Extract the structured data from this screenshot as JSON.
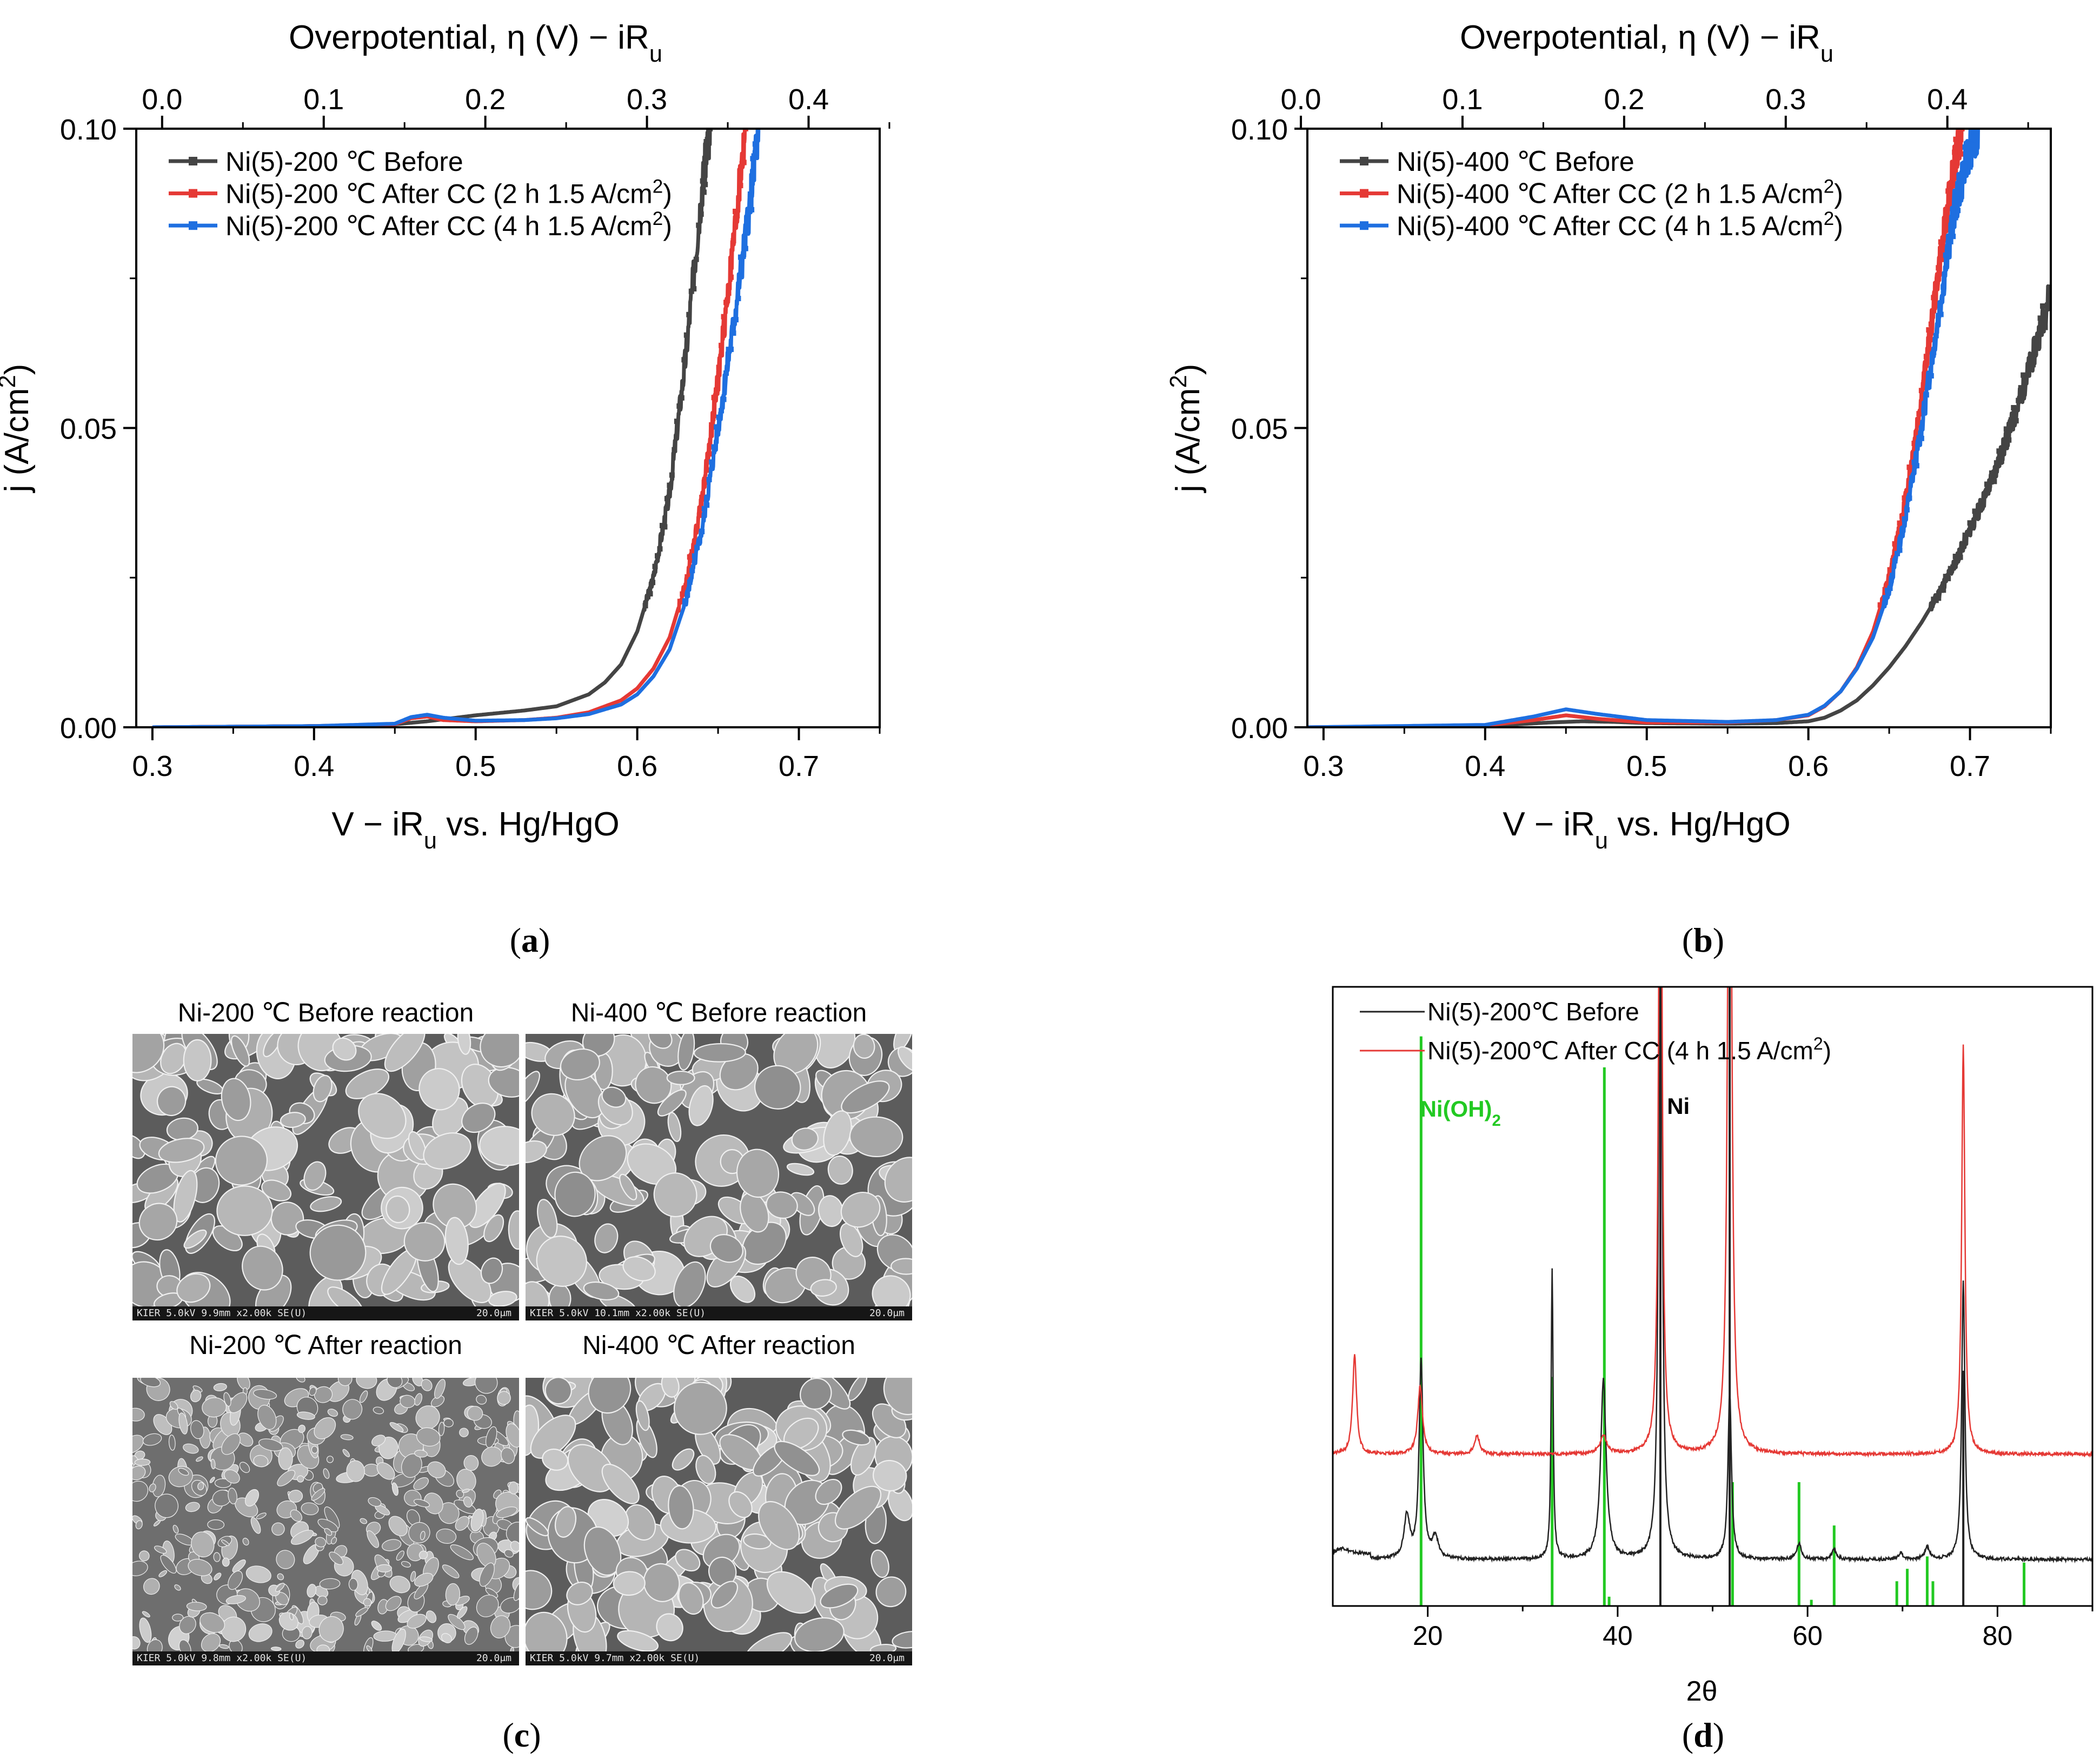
{
  "colors": {
    "before": "#444444",
    "after_2h": "#e53935",
    "after_4h": "#1e6fe0",
    "xrd_before": "#222222",
    "xrd_after": "#e53935",
    "xrd_ref_ni_oh2": "#22c922",
    "xrd_ref_ni": "#222222"
  },
  "panel_letters": {
    "a": "a",
    "b": "b",
    "c": "c",
    "d": "d"
  },
  "sem": {
    "titles": [
      "Ni-200 ℃ Before reaction",
      "Ni-400 ℃ Before reaction",
      "Ni-200 ℃ After reaction",
      "Ni-400 ℃ After reaction"
    ],
    "footers": [
      "KIER 5.0kV 9.9mm x2.00k SE(U)",
      "KIER 5.0kV 10.1mm x2.00k SE(U)",
      "KIER 5.0kV 9.8mm x2.00k SE(U)",
      "KIER 5.0kV 9.7mm x2.00k SE(U)"
    ],
    "scale": "20.0μm"
  },
  "chart_data": [
    {
      "id": "a",
      "type": "line",
      "xlabel": "V − iRu vs. Hg/HgO",
      "ylabel": "j (A/cm2)",
      "top_xlabel": "Overpotential, η (V) − iRu",
      "xlim": [
        0.29,
        0.75
      ],
      "ylim": [
        0,
        0.1
      ],
      "xticks": [
        "0.3",
        "0.4",
        "0.5",
        "0.6",
        "0.7"
      ],
      "yticks": [
        "0.00",
        "0.05",
        "0.10"
      ],
      "top_ticks": [
        "0.0",
        "0.1",
        "0.2",
        "0.3",
        "0.4"
      ],
      "legend": [
        "Ni(5)-200 ℃ Before",
        "Ni(5)-200 ℃ After CC (2 h 1.5 A/cm2)",
        "Ni(5)-200 ℃ After CC (4 h 1.5 A/cm2)"
      ],
      "series": [
        {
          "name": "Ni(5)-200 ℃ Before",
          "x": [
            0.3,
            0.4,
            0.45,
            0.47,
            0.5,
            0.53,
            0.55,
            0.57,
            0.58,
            0.59,
            0.6,
            0.61,
            0.62,
            0.63,
            0.64,
            0.645
          ],
          "y": [
            0.0,
            0.0002,
            0.0005,
            0.001,
            0.002,
            0.0028,
            0.0035,
            0.0055,
            0.0075,
            0.0105,
            0.016,
            0.025,
            0.039,
            0.062,
            0.09,
            0.1
          ]
        },
        {
          "name": "Ni(5)-200 ℃ After CC (2 h 1.5 A/cm2)",
          "x": [
            0.3,
            0.4,
            0.45,
            0.46,
            0.47,
            0.48,
            0.5,
            0.53,
            0.55,
            0.57,
            0.59,
            0.6,
            0.61,
            0.62,
            0.63,
            0.64,
            0.65,
            0.66,
            0.667
          ],
          "y": [
            0.0,
            0.0002,
            0.0005,
            0.0015,
            0.0018,
            0.0012,
            0.001,
            0.0012,
            0.0016,
            0.0025,
            0.0045,
            0.0065,
            0.0098,
            0.015,
            0.024,
            0.038,
            0.058,
            0.082,
            0.1
          ]
        },
        {
          "name": "Ni(5)-200 ℃ After CC (4 h 1.5 A/cm2)",
          "x": [
            0.3,
            0.4,
            0.45,
            0.46,
            0.47,
            0.48,
            0.5,
            0.53,
            0.55,
            0.57,
            0.59,
            0.6,
            0.61,
            0.62,
            0.63,
            0.64,
            0.65,
            0.66,
            0.67,
            0.675
          ],
          "y": [
            0.0,
            0.0002,
            0.0006,
            0.0017,
            0.0021,
            0.0016,
            0.0011,
            0.0012,
            0.0015,
            0.0022,
            0.0038,
            0.0055,
            0.0085,
            0.013,
            0.021,
            0.033,
            0.05,
            0.068,
            0.088,
            0.1
          ]
        }
      ]
    },
    {
      "id": "b",
      "type": "line",
      "xlabel": "V − iRu vs. Hg/HgO",
      "ylabel": "j (A/cm2)",
      "top_xlabel": "Overpotential, η (V) − iRu",
      "xlim": [
        0.29,
        0.75
      ],
      "ylim": [
        0,
        0.1
      ],
      "xticks": [
        "0.3",
        "0.4",
        "0.5",
        "0.6",
        "0.7"
      ],
      "yticks": [
        "0.00",
        "0.05",
        "0.10"
      ],
      "top_ticks": [
        "0.0",
        "0.1",
        "0.2",
        "0.3",
        "0.4"
      ],
      "legend": [
        "Ni(5)-400 ℃ Before",
        "Ni(5)-400 ℃ After CC (2 h 1.5 A/cm2)",
        "Ni(5)-400 ℃ After CC (4 h 1.5 A/cm2)"
      ],
      "series": [
        {
          "name": "Ni(5)-400 ℃ Before",
          "x": [
            0.29,
            0.4,
            0.44,
            0.46,
            0.48,
            0.5,
            0.55,
            0.58,
            0.6,
            0.61,
            0.62,
            0.63,
            0.64,
            0.65,
            0.66,
            0.67,
            0.68,
            0.69,
            0.7,
            0.71,
            0.72,
            0.73,
            0.74,
            0.75
          ],
          "y": [
            0.0,
            0.0002,
            0.0008,
            0.001,
            0.0009,
            0.0007,
            0.0006,
            0.0007,
            0.001,
            0.0016,
            0.0028,
            0.0045,
            0.007,
            0.01,
            0.0135,
            0.0175,
            0.022,
            0.027,
            0.033,
            0.039,
            0.046,
            0.054,
            0.063,
            0.073
          ]
        },
        {
          "name": "Ni(5)-400 ℃ After CC (2 h 1.5 A/cm2)",
          "x": [
            0.29,
            0.4,
            0.43,
            0.45,
            0.47,
            0.5,
            0.55,
            0.58,
            0.6,
            0.61,
            0.62,
            0.63,
            0.64,
            0.65,
            0.66,
            0.67,
            0.68,
            0.69,
            0.695
          ],
          "y": [
            0.0,
            0.0003,
            0.0012,
            0.002,
            0.0014,
            0.0008,
            0.0008,
            0.0012,
            0.002,
            0.0035,
            0.006,
            0.01,
            0.016,
            0.025,
            0.038,
            0.055,
            0.075,
            0.094,
            0.1
          ]
        },
        {
          "name": "Ni(5)-400 ℃ After CC (4 h 1.5 A/cm2)",
          "x": [
            0.29,
            0.4,
            0.43,
            0.45,
            0.47,
            0.5,
            0.55,
            0.58,
            0.6,
            0.61,
            0.62,
            0.63,
            0.64,
            0.65,
            0.66,
            0.67,
            0.68,
            0.69,
            0.7,
            0.705
          ],
          "y": [
            0.0,
            0.0004,
            0.0018,
            0.003,
            0.0022,
            0.0012,
            0.0009,
            0.0012,
            0.0021,
            0.0036,
            0.006,
            0.0098,
            0.015,
            0.023,
            0.035,
            0.05,
            0.068,
            0.086,
            0.097,
            0.1
          ]
        }
      ]
    },
    {
      "id": "d",
      "type": "line",
      "xlabel": "2θ",
      "ylabel": "",
      "xlim": [
        10,
        90
      ],
      "ylim": [
        0,
        100
      ],
      "xticks": [
        "20",
        "40",
        "60",
        "80"
      ],
      "legend": [
        "Ni(5)-200℃ Before",
        "Ni(5)-200℃ After CC (4 h 1.5 A/cm2)"
      ],
      "annotations": [
        "Ni(OH)2",
        "Ni"
      ],
      "series": [
        {
          "name": "Ni(5)-200℃ Before",
          "baseline": 7.5,
          "peaks": [
            [
              11,
              1,
              0.8
            ],
            [
              17.8,
              7,
              0.35
            ],
            [
              19.3,
              32,
              0.25
            ],
            [
              20.8,
              3.5,
              0.35
            ],
            [
              33.1,
              47,
              0.12
            ],
            [
              38.5,
              29,
              0.35
            ],
            [
              44.5,
              150,
              0.18
            ],
            [
              51.8,
              27,
              0.22
            ],
            [
              59.1,
              2.5,
              0.3
            ],
            [
              62.8,
              1.5,
              0.3
            ],
            [
              69.8,
              1.0,
              0.3
            ],
            [
              72.6,
              2.0,
              0.3
            ],
            [
              76.4,
              45,
              0.2
            ]
          ]
        },
        {
          "name": "Ni(5)-200℃ After CC (4 h 1.5 A/cm2)",
          "baseline": 24.5,
          "peaks": [
            [
              12.3,
              16,
              0.25
            ],
            [
              19.2,
              11,
              0.3
            ],
            [
              25.2,
              3,
              0.3
            ],
            [
              38.5,
              3,
              0.4
            ],
            [
              44.5,
              150,
              0.18
            ],
            [
              51.8,
              150,
              0.22
            ],
            [
              76.4,
              66,
              0.2
            ]
          ]
        }
      ],
      "reference_lines": {
        "Ni(OH)2": [
          [
            19.3,
            92
          ],
          [
            33.1,
            37
          ],
          [
            38.6,
            87
          ],
          [
            39.1,
            1.5
          ],
          [
            52.1,
            20
          ],
          [
            59.1,
            20
          ],
          [
            60.4,
            1
          ],
          [
            62.8,
            13
          ],
          [
            69.4,
            4
          ],
          [
            70.5,
            6
          ],
          [
            72.6,
            8
          ],
          [
            73.2,
            4
          ],
          [
            82.8,
            7
          ]
        ],
        "Ni": [
          [
            44.5,
            100
          ],
          [
            51.8,
            100
          ],
          [
            76.4,
            38
          ]
        ]
      }
    }
  ]
}
